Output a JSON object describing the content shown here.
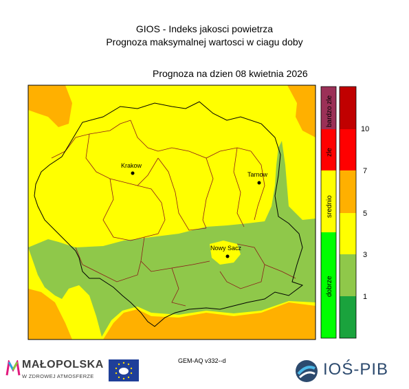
{
  "header": {
    "title": "GIOS - Indeks jakosci powietrza",
    "subtitle": "Prognoza maksymalnej wartosci w ciagu doby",
    "forecast_date": "Prognoza na dzien  08 kwietnia 2026"
  },
  "cities": {
    "krakow": "Krakow",
    "tarnow": "Tarnow",
    "nowy_sacz": "Nowy Sacz"
  },
  "legend": {
    "categories": {
      "bardzo_zle": "bardzo zle",
      "zle": "zle",
      "srednio": "srednio",
      "dobrze": "dobrze"
    },
    "values": [
      "1",
      "3",
      "5",
      "7",
      "10"
    ],
    "colors": {
      "bardzo_zle": "#9b3057",
      "zle": "#ff0000",
      "srednio": "#ffff00",
      "dobrze": "#00ff00",
      "level_1": "#1aa33d",
      "level_3": "#8fc84a",
      "level_5": "#ffff00",
      "level_7": "#ffb000",
      "level_10": "#ff0000",
      "level_top": "#c00000"
    }
  },
  "map_colors": {
    "yellow": "#ffff00",
    "orange": "#ffb000",
    "green": "#8fc84a",
    "border": "#000000",
    "district_border": "#8b1a1a"
  },
  "footer": {
    "model_version": "GEM-AQ v332--d",
    "malopolska_title": "MAŁOPOLSKA",
    "malopolska_sub": "W ZDROWEJ ATMOSFERZE",
    "ios_label": "IOŚ-PIB"
  }
}
